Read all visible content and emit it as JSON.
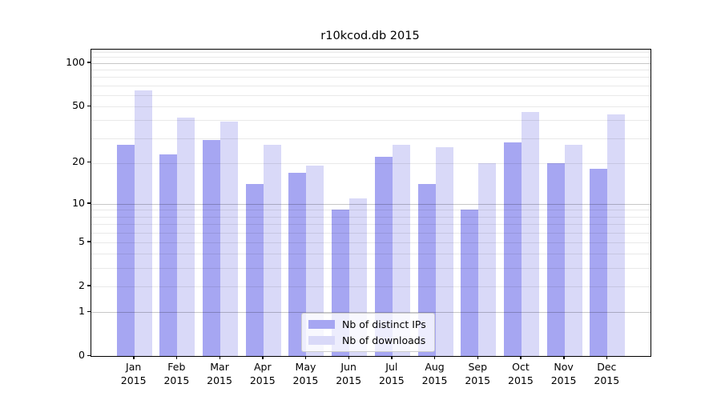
{
  "title": "r10kcod.db 2015",
  "chart_data": {
    "type": "bar",
    "title": "r10kcod.db 2015",
    "categories": [
      "Jan 2015",
      "Feb 2015",
      "Mar 2015",
      "Apr 2015",
      "May 2015",
      "Jun 2015",
      "Jul 2015",
      "Aug 2015",
      "Sep 2015",
      "Oct 2015",
      "Nov 2015",
      "Dec 2015"
    ],
    "x_tick_top_lines": [
      "Jan",
      "Feb",
      "Mar",
      "Apr",
      "May",
      "Jun",
      "Jul",
      "Aug",
      "Sep",
      "Oct",
      "Nov",
      "Dec"
    ],
    "x_tick_bottom_line": "2015",
    "series": [
      {
        "name": "Nb of distinct IPs",
        "color": "#a6a6f2",
        "values": [
          27,
          23,
          29,
          14,
          17,
          9,
          22,
          14,
          9,
          28,
          20,
          18
        ]
      },
      {
        "name": "Nb of downloads",
        "color": "#d9d9f8",
        "values": [
          65,
          42,
          39,
          27,
          19,
          11,
          27,
          26,
          20,
          46,
          27,
          44
        ]
      }
    ],
    "yscale": "log10(1+y)",
    "ylim": [
      0,
      124
    ],
    "xlabel": "",
    "ylabel": "",
    "ytick_values": [
      100,
      50,
      20,
      10,
      5,
      2,
      1,
      0
    ],
    "ytick_labels": [
      "100",
      "50",
      "20",
      "10",
      "5",
      "2",
      "1",
      "0"
    ],
    "major_gridlines": [
      1,
      10,
      100
    ],
    "minor_gridlines": [
      2,
      3,
      4,
      5,
      6,
      7,
      8,
      9,
      20,
      30,
      40,
      50,
      60,
      70,
      80,
      90,
      110,
      120
    ],
    "grid": true,
    "legend_position": "bottom-center",
    "legend": [
      "Nb of distinct IPs",
      "Nb of downloads"
    ]
  },
  "colors": {
    "ips_bar": "#a6a6f2",
    "downloads_bar": "#d9d9f8",
    "spine": "#000000",
    "legend_border": "#cccccc",
    "text": "#000000"
  }
}
